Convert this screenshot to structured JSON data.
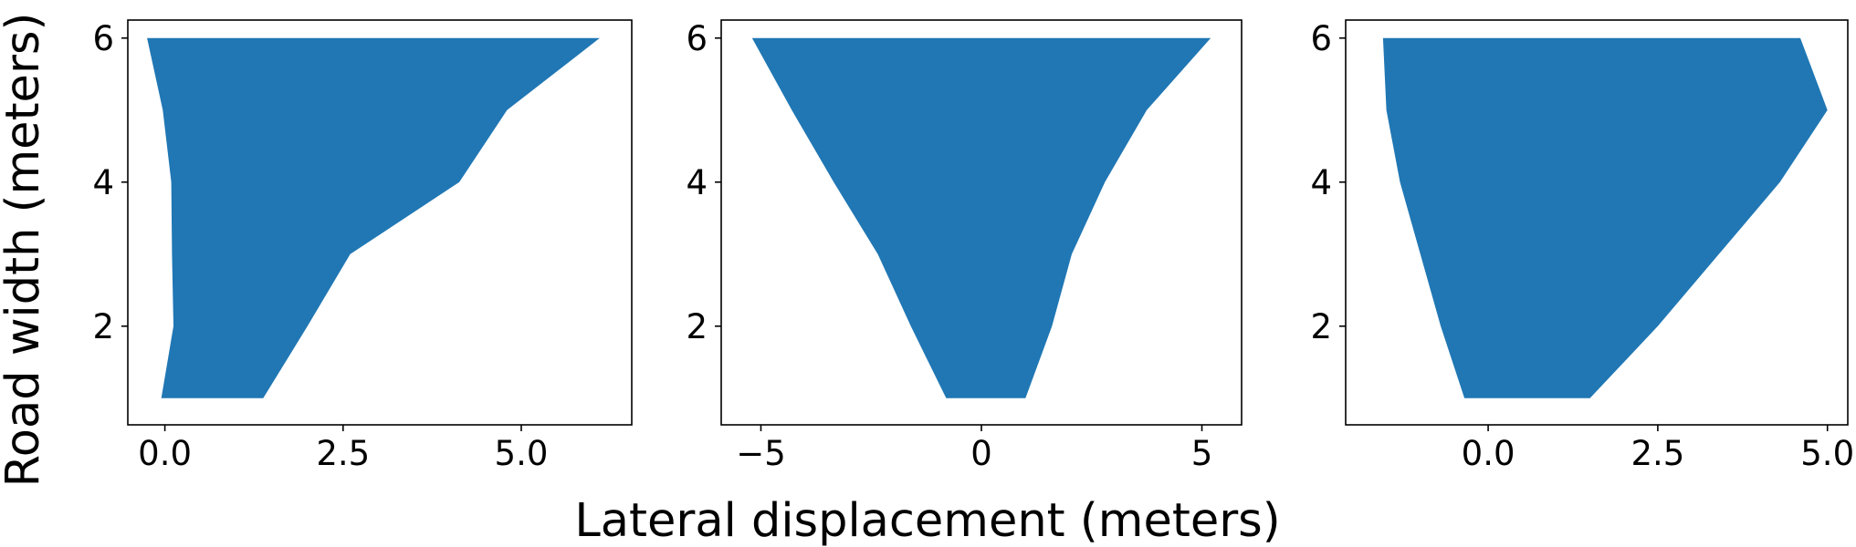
{
  "chart_data": {
    "type": "area",
    "xlabel": "Lateral displacement (meters)",
    "ylabel": "Road width (meters)",
    "grid": false,
    "panels": [
      {
        "xlim": [
          -0.52,
          6.55
        ],
        "ylim": [
          0.63,
          6.25
        ],
        "xticks": [
          {
            "v": 0.0,
            "label": "0.0"
          },
          {
            "v": 2.5,
            "label": "2.5"
          },
          {
            "v": 5.0,
            "label": "5.0"
          }
        ],
        "yticks": [
          {
            "v": 2,
            "label": "2"
          },
          {
            "v": 4,
            "label": "4"
          },
          {
            "v": 6,
            "label": "6"
          }
        ],
        "series": [
          {
            "y": [
              1,
              2,
              3,
              4,
              5,
              6
            ],
            "x_left": [
              -0.05,
              0.12,
              0.1,
              0.09,
              -0.03,
              -0.25
            ],
            "x_right": [
              1.38,
              2.0,
              2.6,
              4.13,
              4.8,
              6.1
            ]
          }
        ]
      },
      {
        "xlim": [
          -5.9,
          5.9
        ],
        "ylim": [
          0.63,
          6.25
        ],
        "xticks": [
          {
            "v": -5,
            "label": "−5"
          },
          {
            "v": 0,
            "label": "0"
          },
          {
            "v": 5,
            "label": "5"
          }
        ],
        "yticks": [
          {
            "v": 2,
            "label": "2"
          },
          {
            "v": 4,
            "label": "4"
          },
          {
            "v": 6,
            "label": "6"
          }
        ],
        "series": [
          {
            "y": [
              1,
              2,
              3,
              4,
              5,
              6
            ],
            "x_left": [
              -0.8,
              -1.6,
              -2.35,
              -3.35,
              -4.3,
              -5.2
            ],
            "x_right": [
              1.0,
              1.6,
              2.05,
              2.8,
              3.75,
              5.2
            ]
          }
        ]
      },
      {
        "xlim": [
          -2.1,
          5.3
        ],
        "ylim": [
          0.63,
          6.25
        ],
        "xticks": [
          {
            "v": 0.0,
            "label": "0.0"
          },
          {
            "v": 2.5,
            "label": "2.5"
          },
          {
            "v": 5.0,
            "label": "5.0"
          }
        ],
        "yticks": [
          {
            "v": 2,
            "label": "2"
          },
          {
            "v": 4,
            "label": "4"
          },
          {
            "v": 6,
            "label": "6"
          }
        ],
        "series": [
          {
            "y": [
              1,
              2,
              3,
              4,
              5,
              6
            ],
            "x_left": [
              -0.35,
              -0.7,
              -1.0,
              -1.3,
              -1.5,
              -1.55
            ],
            "x_right": [
              1.5,
              2.5,
              3.4,
              4.3,
              5.0,
              4.6
            ]
          }
        ]
      }
    ],
    "fill_color": "#2077b4"
  }
}
